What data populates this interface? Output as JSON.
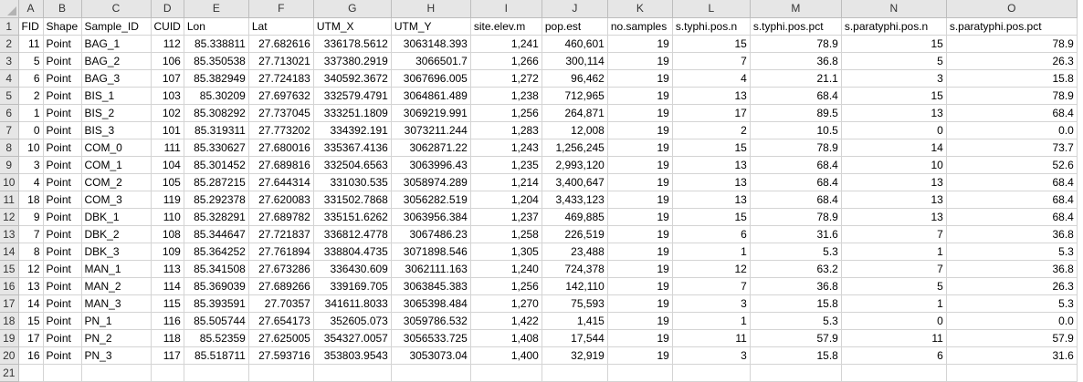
{
  "columns": [
    "A",
    "B",
    "C",
    "D",
    "E",
    "F",
    "G",
    "H",
    "I",
    "J",
    "K",
    "L",
    "M",
    "N",
    "O"
  ],
  "header_row": [
    "FID",
    "Shape",
    "Sample_ID",
    "CUID",
    "Lon",
    "Lat",
    "UTM_X",
    "UTM_Y",
    "site.elev.m",
    "pop.est",
    "no.samples",
    "s.typhi.pos.n",
    "s.typhi.pos.pct",
    "s.paratyphi.pos.n",
    "s.paratyphi.pos.pct"
  ],
  "rows": [
    [
      "11",
      "Point",
      "BAG_1",
      "112",
      "85.338811",
      "27.682616",
      "336178.5612",
      "3063148.393",
      "1,241",
      "460,601",
      "19",
      "15",
      "78.9",
      "15",
      "78.9"
    ],
    [
      "5",
      "Point",
      "BAG_2",
      "106",
      "85.350538",
      "27.713021",
      "337380.2919",
      "3066501.7",
      "1,266",
      "300,114",
      "19",
      "7",
      "36.8",
      "5",
      "26.3"
    ],
    [
      "6",
      "Point",
      "BAG_3",
      "107",
      "85.382949",
      "27.724183",
      "340592.3672",
      "3067696.005",
      "1,272",
      "96,462",
      "19",
      "4",
      "21.1",
      "3",
      "15.8"
    ],
    [
      "2",
      "Point",
      "BIS_1",
      "103",
      "85.30209",
      "27.697632",
      "332579.4791",
      "3064861.489",
      "1,238",
      "712,965",
      "19",
      "13",
      "68.4",
      "15",
      "78.9"
    ],
    [
      "1",
      "Point",
      "BIS_2",
      "102",
      "85.308292",
      "27.737045",
      "333251.1809",
      "3069219.991",
      "1,256",
      "264,871",
      "19",
      "17",
      "89.5",
      "13",
      "68.4"
    ],
    [
      "0",
      "Point",
      "BIS_3",
      "101",
      "85.319311",
      "27.773202",
      "334392.191",
      "3073211.244",
      "1,283",
      "12,008",
      "19",
      "2",
      "10.5",
      "0",
      "0.0"
    ],
    [
      "10",
      "Point",
      "COM_0",
      "111",
      "85.330627",
      "27.680016",
      "335367.4136",
      "3062871.22",
      "1,243",
      "1,256,245",
      "19",
      "15",
      "78.9",
      "14",
      "73.7"
    ],
    [
      "3",
      "Point",
      "COM_1",
      "104",
      "85.301452",
      "27.689816",
      "332504.6563",
      "3063996.43",
      "1,235",
      "2,993,120",
      "19",
      "13",
      "68.4",
      "10",
      "52.6"
    ],
    [
      "4",
      "Point",
      "COM_2",
      "105",
      "85.287215",
      "27.644314",
      "331030.535",
      "3058974.289",
      "1,214",
      "3,400,647",
      "19",
      "13",
      "68.4",
      "13",
      "68.4"
    ],
    [
      "18",
      "Point",
      "COM_3",
      "119",
      "85.292378",
      "27.620083",
      "331502.7868",
      "3056282.519",
      "1,204",
      "3,433,123",
      "19",
      "13",
      "68.4",
      "13",
      "68.4"
    ],
    [
      "9",
      "Point",
      "DBK_1",
      "110",
      "85.328291",
      "27.689782",
      "335151.6262",
      "3063956.384",
      "1,237",
      "469,885",
      "19",
      "15",
      "78.9",
      "13",
      "68.4"
    ],
    [
      "7",
      "Point",
      "DBK_2",
      "108",
      "85.344647",
      "27.721837",
      "336812.4778",
      "3067486.23",
      "1,258",
      "226,519",
      "19",
      "6",
      "31.6",
      "7",
      "36.8"
    ],
    [
      "8",
      "Point",
      "DBK_3",
      "109",
      "85.364252",
      "27.761894",
      "338804.4735",
      "3071898.546",
      "1,305",
      "23,488",
      "19",
      "1",
      "5.3",
      "1",
      "5.3"
    ],
    [
      "12",
      "Point",
      "MAN_1",
      "113",
      "85.341508",
      "27.673286",
      "336430.609",
      "3062111.163",
      "1,240",
      "724,378",
      "19",
      "12",
      "63.2",
      "7",
      "36.8"
    ],
    [
      "13",
      "Point",
      "MAN_2",
      "114",
      "85.369039",
      "27.689266",
      "339169.705",
      "3063845.383",
      "1,256",
      "142,110",
      "19",
      "7",
      "36.8",
      "5",
      "26.3"
    ],
    [
      "14",
      "Point",
      "MAN_3",
      "115",
      "85.393591",
      "27.70357",
      "341611.8033",
      "3065398.484",
      "1,270",
      "75,593",
      "19",
      "3",
      "15.8",
      "1",
      "5.3"
    ],
    [
      "15",
      "Point",
      "PN_1",
      "116",
      "85.505744",
      "27.654173",
      "352605.073",
      "3059786.532",
      "1,422",
      "1,415",
      "19",
      "1",
      "5.3",
      "0",
      "0.0"
    ],
    [
      "17",
      "Point",
      "PN_2",
      "118",
      "85.52359",
      "27.625005",
      "354327.0057",
      "3056533.725",
      "1,408",
      "17,544",
      "19",
      "11",
      "57.9",
      "11",
      "57.9"
    ],
    [
      "16",
      "Point",
      "PN_3",
      "117",
      "85.518711",
      "27.593716",
      "353803.9543",
      "3053073.04",
      "1,400",
      "32,919",
      "19",
      "3",
      "15.8",
      "6",
      "31.6"
    ]
  ],
  "column_align": [
    "right",
    "left",
    "left",
    "right",
    "right",
    "right",
    "right",
    "right",
    "right",
    "right",
    "right",
    "right",
    "right",
    "right",
    "right"
  ],
  "header_align": [
    "left",
    "left",
    "left",
    "left",
    "left",
    "left",
    "left",
    "left",
    "left",
    "left",
    "left",
    "left",
    "left",
    "left",
    "left"
  ],
  "row_numbers": [
    "1",
    "2",
    "3",
    "4",
    "5",
    "6",
    "7",
    "8",
    "9",
    "10",
    "11",
    "12",
    "13",
    "14",
    "15",
    "16",
    "17",
    "18",
    "19",
    "20",
    "21"
  ],
  "colors": {
    "header_bg": "#e6e6e6",
    "grid": "#d4d4d4",
    "cell_bg": "#ffffff"
  }
}
